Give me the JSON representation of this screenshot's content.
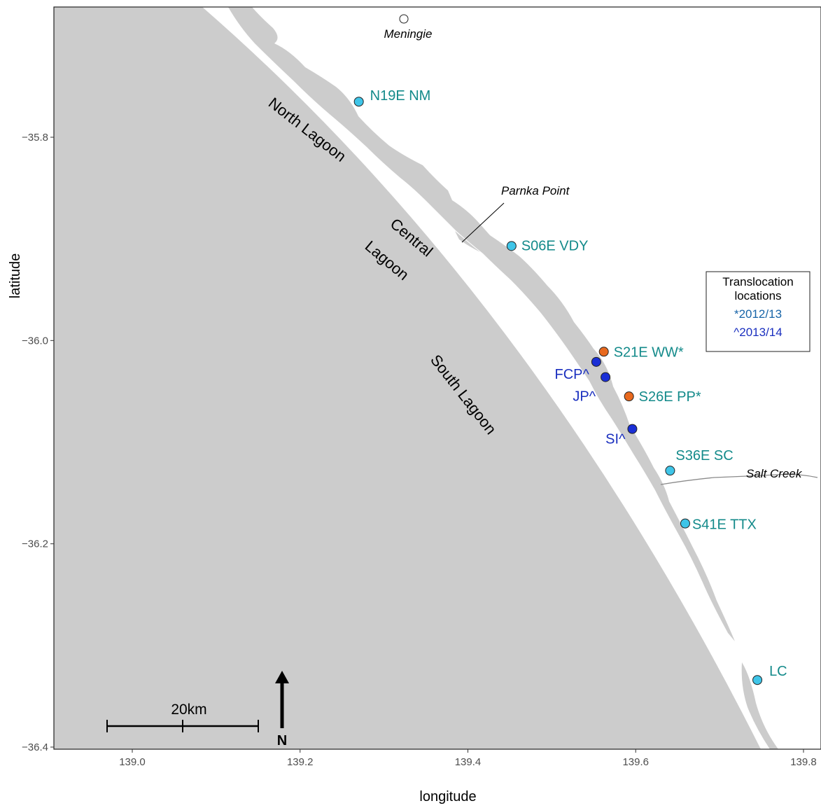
{
  "axes": {
    "xlabel": "longitude",
    "ylabel": "latitude",
    "x_ticks": [
      "139.0",
      "139.2",
      "139.4",
      "139.6",
      "139.8"
    ],
    "y_ticks": [
      "-35.8",
      "-36.0",
      "-36.2",
      "-36.4"
    ],
    "x_tick_values": [
      139.0,
      139.2,
      139.4,
      139.6,
      139.8
    ],
    "y_tick_values": [
      -35.8,
      -36.0,
      -36.2,
      -36.4
    ],
    "xlim": [
      138.91,
      139.82
    ],
    "ylim": [
      -36.405,
      -35.675
    ]
  },
  "colors": {
    "sea": "#cccccc",
    "land": "#ffffff",
    "cyan_site": "#3fc5e8",
    "orange_site": "#e8691e",
    "blue_site": "#1a2fd6",
    "teal_text": "#138a8a",
    "blue_text": "#1a2fbf",
    "legend_2012": "#1764a8",
    "legend_2013": "#1a2fbf"
  },
  "sites": [
    {
      "label": "N19E NM",
      "lon": 139.27,
      "lat": -35.765,
      "kind": "cyan"
    },
    {
      "label": "S06E VDY",
      "lon": 139.452,
      "lat": -35.907,
      "kind": "cyan"
    },
    {
      "label": "S21E WW*",
      "lon": 139.562,
      "lat": -36.011,
      "kind": "orange"
    },
    {
      "label": "FCP^",
      "lon": 139.553,
      "lat": -36.021,
      "kind": "blue"
    },
    {
      "label": "JP^",
      "lon": 139.564,
      "lat": -36.036,
      "kind": "blue"
    },
    {
      "label": "S26E PP*",
      "lon": 139.592,
      "lat": -36.055,
      "kind": "orange"
    },
    {
      "label": "SI^",
      "lon": 139.596,
      "lat": -36.087,
      "kind": "blue"
    },
    {
      "label": "S36E SC",
      "lon": 139.641,
      "lat": -36.128,
      "kind": "cyan"
    },
    {
      "label": "S41E TTX",
      "lon": 139.659,
      "lat": -36.18,
      "kind": "cyan"
    },
    {
      "label": "LC",
      "lon": 139.745,
      "lat": -36.334,
      "kind": "cyan"
    }
  ],
  "places": {
    "meningie": "Meningie",
    "parnka_point": "Parnka Point",
    "salt_creek": "Salt Creek"
  },
  "lagoons": {
    "north_lagoon": "North Lagoon",
    "central": "Central",
    "lagoon": "Lagoon",
    "south_lagoon": "South Lagoon"
  },
  "legend": {
    "title_line1": "Translocation",
    "title_line2": "locations",
    "entry_2012": "*2012/13",
    "entry_2013": "^2013/14"
  },
  "scale_bar": {
    "label": "20km"
  },
  "north_arrow": {
    "label": "N"
  }
}
